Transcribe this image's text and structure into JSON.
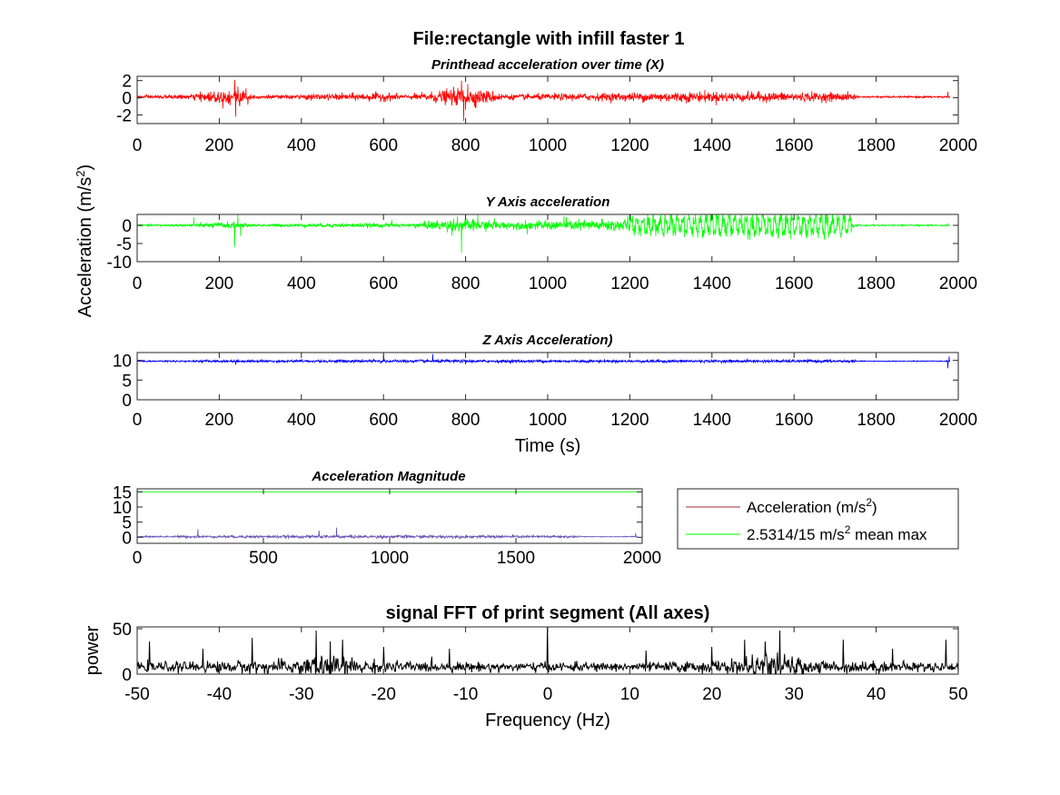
{
  "figure": {
    "suptitle": "File:rectangle with infill faster 1",
    "shared_ylabel": "Acceleration (m/s²)",
    "shared_xlabel": "Time (s)"
  },
  "chart_data": [
    {
      "id": "x",
      "type": "line",
      "title": "Printhead acceleration over time (X)",
      "title_style": "italic",
      "color": "#ff0000",
      "xlim": [
        0,
        2000
      ],
      "ylim": [
        -3,
        2.5
      ],
      "xticks": [
        0,
        200,
        400,
        600,
        800,
        1000,
        1200,
        1400,
        1600,
        1800,
        2000
      ],
      "yticks": [
        -2,
        0,
        2
      ],
      "signal": {
        "x_range": [
          0,
          1980
        ],
        "baseline": 0.1,
        "noise_profile": [
          [
            0,
            0.15
          ],
          [
            120,
            0.2
          ],
          [
            230,
            0.8
          ],
          [
            260,
            0.6
          ],
          [
            290,
            0.15
          ],
          [
            600,
            0.4
          ],
          [
            660,
            0.2
          ],
          [
            780,
            0.8
          ],
          [
            860,
            0.6
          ],
          [
            900,
            0.25
          ],
          [
            1200,
            0.4
          ],
          [
            1300,
            0.5
          ],
          [
            1740,
            0.4
          ],
          [
            1760,
            0.08
          ],
          [
            1980,
            0.08
          ]
        ],
        "spikes": [
          [
            238,
            2.0
          ],
          [
            240,
            -2.3
          ],
          [
            245,
            1.2
          ],
          [
            250,
            -1.1
          ],
          [
            265,
            1.0
          ],
          [
            270,
            -0.9
          ],
          [
            790,
            1.9
          ],
          [
            795,
            -2.8
          ],
          [
            800,
            -1.5
          ],
          [
            805,
            1.5
          ],
          [
            825,
            -1.3
          ],
          [
            1975,
            0.6
          ]
        ]
      }
    },
    {
      "id": "y",
      "type": "line",
      "title": "Y Axis acceleration",
      "title_style": "italic",
      "color": "#00ff00",
      "xlim": [
        0,
        2000
      ],
      "ylim": [
        -10,
        3
      ],
      "xticks": [
        0,
        200,
        400,
        600,
        800,
        1000,
        1200,
        1400,
        1600,
        1800,
        2000
      ],
      "yticks": [
        -10,
        -5,
        0
      ],
      "signal": {
        "x_range": [
          0,
          1980
        ],
        "baseline": 0,
        "noise_profile": [
          [
            0,
            0.2
          ],
          [
            130,
            0.3
          ],
          [
            220,
            0.8
          ],
          [
            280,
            0.3
          ],
          [
            600,
            0.5
          ],
          [
            650,
            0.3
          ],
          [
            770,
            1.5
          ],
          [
            900,
            0.8
          ],
          [
            1200,
            1.5
          ],
          [
            1730,
            1.5
          ],
          [
            1750,
            0.15
          ],
          [
            1980,
            0.15
          ]
        ],
        "oscillation": {
          "x_start": 1200,
          "x_end": 1740,
          "period": 14,
          "amplitude": 2.0
        },
        "spikes": [
          [
            138,
            2.2
          ],
          [
            238,
            -6.0
          ],
          [
            245,
            3.0
          ],
          [
            252,
            -3.0
          ],
          [
            620,
            1.5
          ],
          [
            780,
            2.5
          ],
          [
            790,
            -7.5
          ],
          [
            800,
            2.5
          ],
          [
            830,
            3.0
          ],
          [
            870,
            2.0
          ],
          [
            950,
            -2.5
          ],
          [
            1040,
            2.5
          ],
          [
            1195,
            2.5
          ],
          [
            1975,
            0.5
          ]
        ]
      }
    },
    {
      "id": "z",
      "type": "line",
      "title": "Z Axis Acceleration)",
      "title_style": "italic",
      "color": "#0000ff",
      "xlim": [
        0,
        2000
      ],
      "ylim": [
        0,
        12
      ],
      "xticks": [
        0,
        200,
        400,
        600,
        800,
        1000,
        1200,
        1400,
        1600,
        1800,
        2000
      ],
      "yticks": [
        0,
        5,
        10
      ],
      "signal": {
        "x_range": [
          0,
          1980
        ],
        "baseline": 9.8,
        "noise_profile": [
          [
            0,
            0.12
          ],
          [
            200,
            0.25
          ],
          [
            600,
            0.3
          ],
          [
            1200,
            0.3
          ],
          [
            1740,
            0.3
          ],
          [
            1760,
            0.1
          ],
          [
            1980,
            0.1
          ]
        ],
        "spikes": [
          [
            240,
            -0.9
          ],
          [
            600,
            1.5
          ],
          [
            720,
            1.8
          ],
          [
            800,
            -0.8
          ],
          [
            1975,
            -1.8
          ],
          [
            1978,
            1.2
          ]
        ]
      }
    },
    {
      "id": "magnitude",
      "type": "line",
      "title": "Acceleration Magnitude",
      "title_style": "italic",
      "xlim": [
        0,
        2000
      ],
      "ylim": [
        -2,
        16
      ],
      "xticks": [
        0,
        500,
        1000,
        1500,
        2000
      ],
      "yticks": [
        0,
        5,
        10,
        15
      ],
      "series": [
        {
          "name": "Acceleration (m/s²)",
          "color": "#6a4fb5",
          "legend_color": "#a02828",
          "signal": {
            "x_range": [
              0,
              1980
            ],
            "baseline": 0.2,
            "noise_profile": [
              [
                0,
                0.15
              ],
              [
                200,
                0.3
              ],
              [
                600,
                0.4
              ],
              [
                1200,
                0.4
              ],
              [
                1740,
                0.35
              ],
              [
                1760,
                0.1
              ],
              [
                1980,
                0.1
              ]
            ],
            "spikes": [
              [
                240,
                2.5
              ],
              [
                720,
                2.0
              ],
              [
                790,
                3.0
              ],
              [
                1975,
                1.2
              ]
            ]
          }
        },
        {
          "name": "2.5314/15 m/s² mean max",
          "color": "#00ff00",
          "constant": 15,
          "x_range": [
            0,
            1980
          ]
        }
      ],
      "legend": {
        "placement": "right, outside plot"
      }
    },
    {
      "id": "fft",
      "type": "line",
      "title": "signal FFT of print segment (All axes)",
      "title_style": "bold",
      "color": "#000000",
      "xlabel": "Frequency (Hz)",
      "ylabel": "power",
      "xlim": [
        -50,
        50
      ],
      "ylim": [
        0,
        52
      ],
      "xticks": [
        -50,
        -40,
        -30,
        -20,
        -10,
        0,
        10,
        20,
        30,
        40,
        50
      ],
      "yticks": [
        0,
        50
      ],
      "signal": {
        "x_range": [
          -50,
          50
        ],
        "baseline": 8,
        "noise_profile": [
          [
            -50,
            4
          ],
          [
            -32,
            6
          ],
          [
            -28,
            12
          ],
          [
            -22,
            6
          ],
          [
            -12,
            4
          ],
          [
            12,
            4
          ],
          [
            22,
            6
          ],
          [
            28,
            12
          ],
          [
            32,
            6
          ],
          [
            50,
            4
          ]
        ],
        "spikes": [
          [
            -48.5,
            28
          ],
          [
            -42,
            20
          ],
          [
            -36,
            32
          ],
          [
            -28.2,
            40
          ],
          [
            -26.5,
            28
          ],
          [
            -25,
            30
          ],
          [
            -20,
            22
          ],
          [
            -12,
            20
          ],
          [
            0,
            46
          ],
          [
            12,
            18
          ],
          [
            20,
            22
          ],
          [
            24,
            30
          ],
          [
            26.5,
            28
          ],
          [
            28.3,
            40
          ],
          [
            36,
            30
          ],
          [
            42,
            20
          ],
          [
            48.5,
            30
          ]
        ]
      }
    }
  ]
}
